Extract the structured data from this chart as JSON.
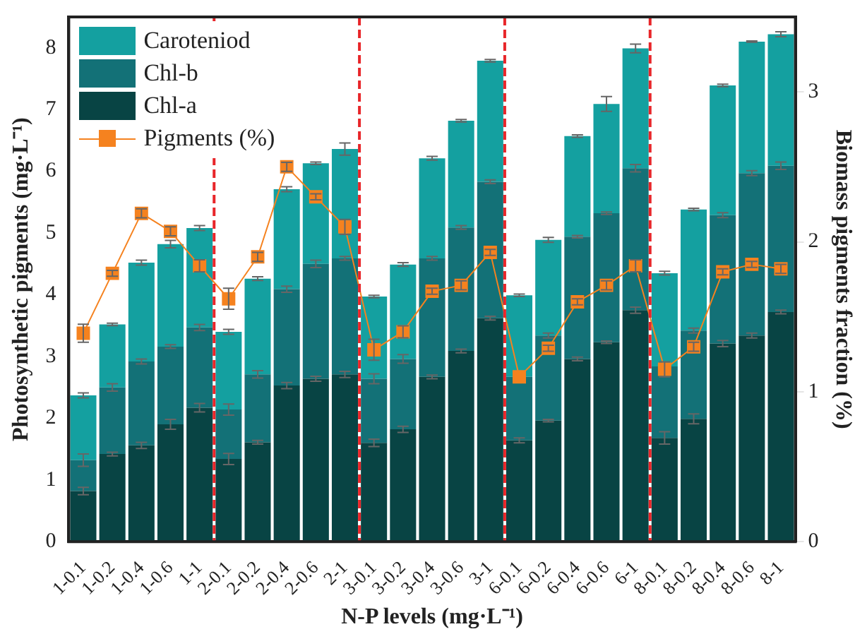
{
  "chart_data": {
    "type": "bar",
    "stacked": true,
    "xlabel": "N-P levels (mg·L⁻¹)",
    "ylabel": "Photosynthetic pigments (mg·L⁻¹)",
    "y2label": "Biomass pigments fraction (%)",
    "categories": [
      "1-0.1",
      "1-0.2",
      "1-0.4",
      "1-0.6",
      "1-1",
      "2-0.1",
      "2-0.2",
      "2-0.4",
      "2-0.6",
      "2-1",
      "3-0.1",
      "3-0.2",
      "3-0.4",
      "3-0.6",
      "3-1",
      "6-0.1",
      "6-0.2",
      "6-0.4",
      "6-0.6",
      "6-1",
      "8-0.1",
      "8-0.2",
      "8-0.4",
      "8-0.6",
      "8-1"
    ],
    "series": [
      {
        "name": "Chl-a",
        "color": "#084444",
        "values": [
          0.82,
          1.42,
          1.56,
          1.9,
          2.17,
          1.34,
          1.61,
          2.53,
          2.64,
          2.71,
          1.6,
          1.82,
          2.67,
          3.09,
          3.62,
          1.64,
          1.96,
          2.96,
          3.23,
          3.75,
          1.68,
          1.99,
          3.21,
          3.34,
          3.72
        ],
        "errors": [
          0.06,
          0.03,
          0.05,
          0.08,
          0.07,
          0.09,
          0.03,
          0.05,
          0.04,
          0.05,
          0.06,
          0.05,
          0.03,
          0.03,
          0.03,
          0.04,
          0.02,
          0.03,
          0.02,
          0.05,
          0.1,
          0.08,
          0.05,
          0.04,
          0.03
        ]
      },
      {
        "name": "Chl-b",
        "color": "#137177",
        "values": [
          0.5,
          1.08,
          1.36,
          1.26,
          1.3,
          0.8,
          1.1,
          1.56,
          1.86,
          1.88,
          1.04,
          1.14,
          1.92,
          2.0,
          2.21,
          1.03,
          1.38,
          1.98,
          2.09,
          2.3,
          1.16,
          1.43,
          2.08,
          2.63,
          2.37
        ],
        "errors": [
          0.1,
          0.06,
          0.04,
          0.03,
          0.05,
          0.09,
          0.06,
          0.05,
          0.06,
          0.03,
          0.08,
          0.07,
          0.03,
          0.03,
          0.03,
          0.03,
          0.04,
          0.02,
          0.02,
          0.06,
          0.05,
          0.04,
          0.04,
          0.04,
          0.06
        ]
      },
      {
        "name": "Caroteniod",
        "color": "#14a0a0",
        "values": [
          1.05,
          1.02,
          1.6,
          1.66,
          1.61,
          1.26,
          1.55,
          1.62,
          1.63,
          1.77,
          1.33,
          1.53,
          1.62,
          1.73,
          1.96,
          1.32,
          1.55,
          1.63,
          1.77,
          1.94,
          1.51,
          1.96,
          2.1,
          2.13,
          2.13
        ],
        "errors": [
          0.04,
          0.02,
          0.04,
          0.06,
          0.04,
          0.04,
          0.03,
          0.04,
          0.02,
          0.1,
          0.02,
          0.03,
          0.03,
          0.02,
          0.02,
          0.02,
          0.04,
          0.02,
          0.12,
          0.07,
          0.03,
          0.02,
          0.02,
          0.01,
          0.04
        ]
      },
      {
        "name": "Pigments (%)",
        "type": "line",
        "axis": "y2",
        "color": "#f5821f",
        "marker": "square",
        "values": [
          1.39,
          1.79,
          2.19,
          2.07,
          1.84,
          1.62,
          1.9,
          2.5,
          2.3,
          2.1,
          1.28,
          1.4,
          1.67,
          1.71,
          1.93,
          1.1,
          1.29,
          1.6,
          1.71,
          1.84,
          1.15,
          1.3,
          1.8,
          1.85,
          1.82
        ],
        "errors": [
          0.06,
          0.02,
          0.03,
          0.03,
          0.04,
          0.07,
          0.03,
          0.03,
          0.02,
          0.05,
          0.07,
          0.04,
          0.02,
          0.03,
          0.02,
          null,
          0.02,
          0.02,
          0.03,
          0.04,
          0.05,
          0.03,
          0.02,
          0.02,
          0.03
        ]
      }
    ],
    "ylim": [
      0,
      8.5
    ],
    "yticks": [
      0,
      1,
      2,
      3,
      4,
      5,
      6,
      7,
      8
    ],
    "y2lim": [
      0,
      3.5
    ],
    "y2ticks": [
      0,
      1,
      2,
      3
    ],
    "grid": false,
    "legend": "top left"
  }
}
